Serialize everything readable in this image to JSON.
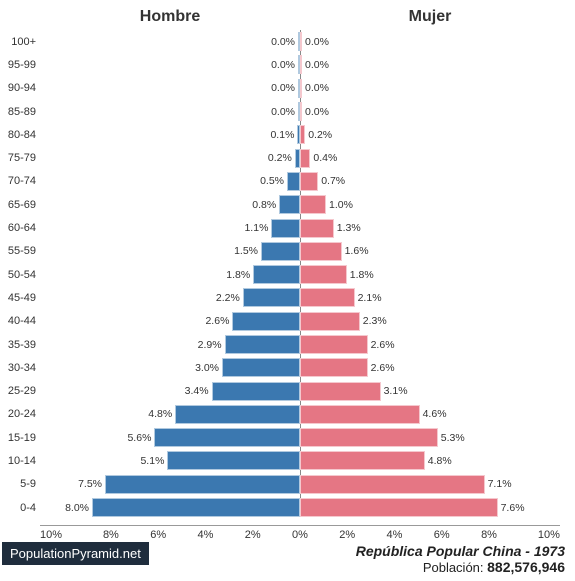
{
  "chart": {
    "type": "population-pyramid",
    "male_label": "Hombre",
    "female_label": "Mujer",
    "male_color": "#3b78b0",
    "female_color": "#e57684",
    "label_fontsize": 16,
    "tick_fontsize": 11,
    "pct_fontsize": 10.5,
    "background_color": "#ffffff",
    "xaxis": {
      "limit": 10,
      "ticks": [
        "10%",
        "8%",
        "6%",
        "4%",
        "2%",
        "0%",
        "2%",
        "4%",
        "6%",
        "8%",
        "10%"
      ]
    },
    "age_groups": [
      "100+",
      "95-99",
      "90-94",
      "85-89",
      "80-84",
      "75-79",
      "70-74",
      "65-69",
      "60-64",
      "55-59",
      "50-54",
      "45-49",
      "40-44",
      "35-39",
      "30-34",
      "25-29",
      "20-24",
      "15-19",
      "10-14",
      "5-9",
      "0-4"
    ],
    "male_pct": [
      0.0,
      0.0,
      0.0,
      0.0,
      0.1,
      0.2,
      0.5,
      0.8,
      1.1,
      1.5,
      1.8,
      2.2,
      2.6,
      2.9,
      3.0,
      3.4,
      4.8,
      5.6,
      5.1,
      7.5,
      8.0
    ],
    "female_pct": [
      0.0,
      0.0,
      0.0,
      0.0,
      0.2,
      0.4,
      0.7,
      1.0,
      1.3,
      1.6,
      1.8,
      2.1,
      2.3,
      2.6,
      2.6,
      3.1,
      4.6,
      5.3,
      4.8,
      7.1,
      7.6
    ]
  },
  "footer": {
    "title": "República Popular China - 1973",
    "population_label": "Población: ",
    "population_value": "882,576,946"
  },
  "brand": "PopulationPyramid.net"
}
